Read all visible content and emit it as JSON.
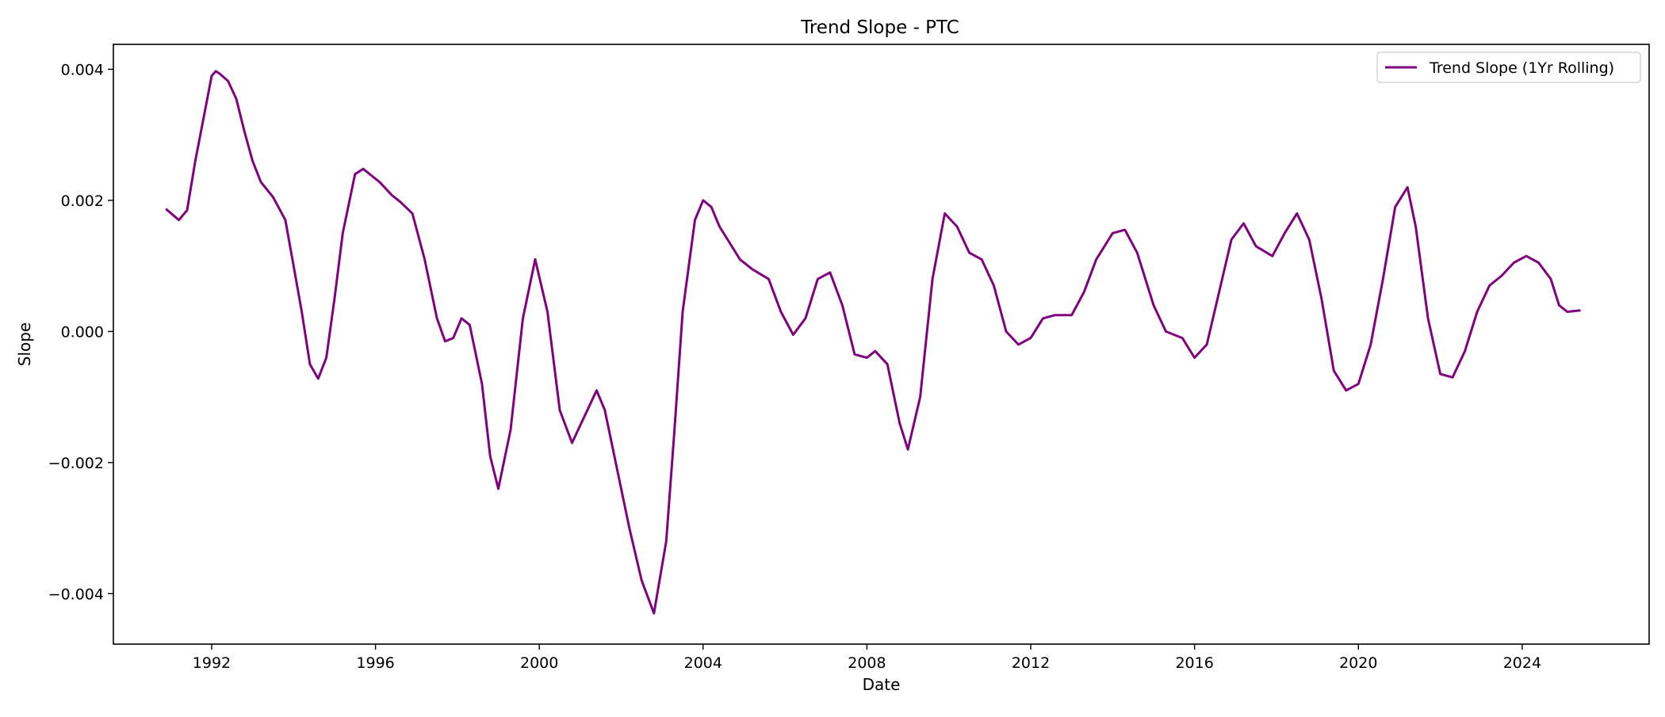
{
  "chart_data": {
    "type": "line",
    "title": "Trend Slope - PTC",
    "xlabel": "Date",
    "ylabel": "Slope",
    "xlim": [
      1989.6,
      2027.1
    ],
    "ylim": [
      -0.00477,
      0.00438
    ],
    "x_ticks": [
      1992,
      1996,
      2000,
      2004,
      2008,
      2012,
      2016,
      2020,
      2024
    ],
    "x_tick_labels": [
      "1992",
      "1996",
      "2000",
      "2004",
      "2008",
      "2012",
      "2016",
      "2020",
      "2024"
    ],
    "y_ticks": [
      0.004,
      0.002,
      0.0,
      -0.002,
      -0.004
    ],
    "y_tick_labels": [
      "0.004",
      "0.002",
      "0.000",
      "−0.002",
      "−0.004"
    ],
    "grid": false,
    "legend_position": "top-right",
    "series": [
      {
        "name": "Trend Slope (1Yr Rolling)",
        "color": "#800080",
        "x": [
          1990.9,
          1991.2,
          1991.4,
          1991.6,
          1992.0,
          1992.1,
          1992.2,
          1992.4,
          1992.6,
          1992.8,
          1993.0,
          1993.2,
          1993.5,
          1993.8,
          1994.0,
          1994.2,
          1994.4,
          1994.6,
          1994.8,
          1995.0,
          1995.2,
          1995.5,
          1995.7,
          1995.9,
          1996.1,
          1996.4,
          1996.6,
          1996.9,
          1997.2,
          1997.5,
          1997.7,
          1997.9,
          1998.1,
          1998.3,
          1998.6,
          1998.8,
          1999.0,
          1999.3,
          1999.6,
          1999.9,
          2000.2,
          2000.5,
          2000.8,
          2001.1,
          2001.4,
          2001.6,
          2001.9,
          2002.2,
          2002.5,
          2002.8,
          2003.1,
          2003.3,
          2003.5,
          2003.8,
          2004.0,
          2004.2,
          2004.4,
          2004.6,
          2004.9,
          2005.2,
          2005.6,
          2005.9,
          2006.2,
          2006.5,
          2006.8,
          2007.1,
          2007.4,
          2007.7,
          2008.0,
          2008.2,
          2008.5,
          2008.8,
          2009.0,
          2009.3,
          2009.6,
          2009.9,
          2010.2,
          2010.5,
          2010.8,
          2011.1,
          2011.4,
          2011.7,
          2012.0,
          2012.3,
          2012.6,
          2013.0,
          2013.3,
          2013.6,
          2014.0,
          2014.3,
          2014.6,
          2015.0,
          2015.3,
          2015.7,
          2016.0,
          2016.3,
          2016.6,
          2016.9,
          2017.2,
          2017.5,
          2017.9,
          2018.2,
          2018.5,
          2018.8,
          2019.1,
          2019.4,
          2019.7,
          2020.0,
          2020.3,
          2020.6,
          2020.9,
          2021.2,
          2021.4,
          2021.7,
          2022.0,
          2022.3,
          2022.6,
          2022.9,
          2023.2,
          2023.5,
          2023.8,
          2024.1,
          2024.4,
          2024.7,
          2024.9,
          2025.1,
          2025.4
        ],
        "values": [
          0.00186,
          0.0017,
          0.00185,
          0.0026,
          0.0039,
          0.00397,
          0.00393,
          0.00382,
          0.00355,
          0.00305,
          0.0026,
          0.00228,
          0.00205,
          0.0017,
          0.001,
          0.0003,
          -0.0005,
          -0.00072,
          -0.0004,
          0.0005,
          0.0015,
          0.0024,
          0.00248,
          0.00238,
          0.00228,
          0.00208,
          0.00198,
          0.0018,
          0.0011,
          0.0002,
          -0.00015,
          -0.0001,
          0.0002,
          0.0001,
          -0.0008,
          -0.0019,
          -0.0024,
          -0.0015,
          0.0002,
          0.0011,
          0.0003,
          -0.0012,
          -0.0017,
          -0.0013,
          -0.0009,
          -0.0012,
          -0.0021,
          -0.003,
          -0.0038,
          -0.0043,
          -0.0032,
          -0.0015,
          0.0003,
          0.0017,
          0.002,
          0.0019,
          0.0016,
          0.0014,
          0.0011,
          0.00095,
          0.0008,
          0.0003,
          -5e-05,
          0.0002,
          0.0008,
          0.0009,
          0.0004,
          -0.00035,
          -0.0004,
          -0.0003,
          -0.0005,
          -0.0014,
          -0.0018,
          -0.001,
          0.0008,
          0.0018,
          0.0016,
          0.0012,
          0.0011,
          0.0007,
          0.0,
          -0.0002,
          -0.0001,
          0.0002,
          0.00025,
          0.00025,
          0.0006,
          0.0011,
          0.0015,
          0.00155,
          0.0012,
          0.0004,
          0.0,
          -0.0001,
          -0.0004,
          -0.0002,
          0.0006,
          0.0014,
          0.00165,
          0.0013,
          0.00115,
          0.0015,
          0.0018,
          0.0014,
          0.0005,
          -0.0006,
          -0.0009,
          -0.0008,
          -0.0002,
          0.0008,
          0.0019,
          0.0022,
          0.0016,
          0.0002,
          -0.00065,
          -0.0007,
          -0.0003,
          0.0003,
          0.0007,
          0.00085,
          0.00105,
          0.00115,
          0.00105,
          0.0008,
          0.0004,
          0.0003,
          0.00032
        ]
      }
    ]
  }
}
